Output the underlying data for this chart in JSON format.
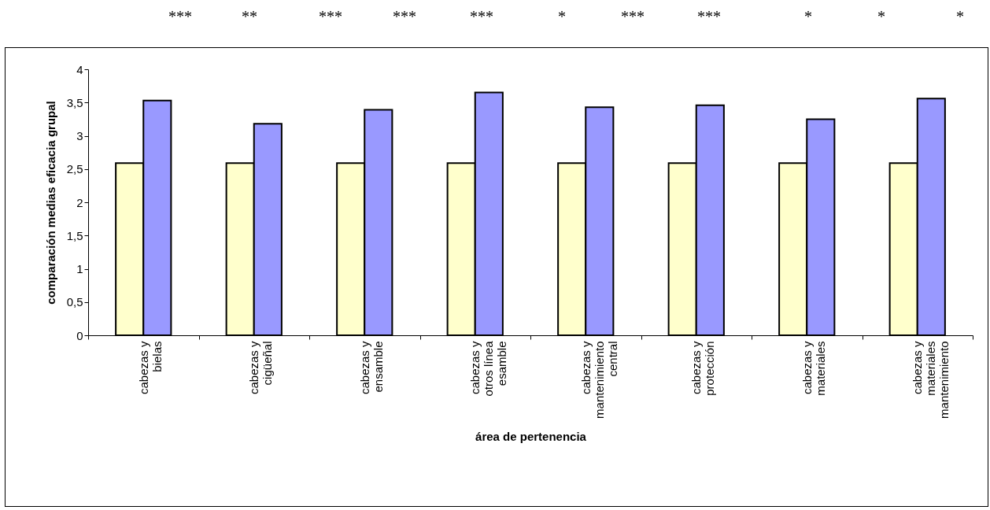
{
  "chart_data": {
    "type": "bar",
    "xlabel": "área de  pertenencia",
    "ylabel": "comparación medias eficacia grupal",
    "categories": [
      "cabezas y\nbielas",
      "cabezas y\ncigüeñal",
      "cabezas y\nensamble",
      "cabezas y\notros línea\nesamble",
      "cabezas y\nmantenimiento\ncentral",
      "cabezas y\nprotección",
      "cabezas y\nmateriales",
      "cabezas y\nmateriales\nmantenimiento"
    ],
    "series": [
      {
        "color": "#ffffcc",
        "values": [
          2.59,
          2.59,
          2.59,
          2.59,
          2.59,
          2.59,
          2.59,
          2.59
        ]
      },
      {
        "color": "#9999ff",
        "values": [
          3.53,
          3.18,
          3.39,
          3.65,
          3.43,
          3.46,
          3.25,
          3.56
        ]
      }
    ],
    "ylim": [
      0,
      4
    ],
    "yticks": [
      0,
      {
        "value": 0.5,
        "label": "0,5"
      },
      1,
      {
        "value": 1.5,
        "label": "1,5"
      },
      2,
      {
        "value": 2.5,
        "label": "2,5"
      },
      3,
      {
        "value": 3.5,
        "label": "3,5"
      },
      4
    ],
    "grid": false,
    "legend": false,
    "annotations": [
      "*** ** *** *** *** * *** *** * * *"
    ]
  }
}
